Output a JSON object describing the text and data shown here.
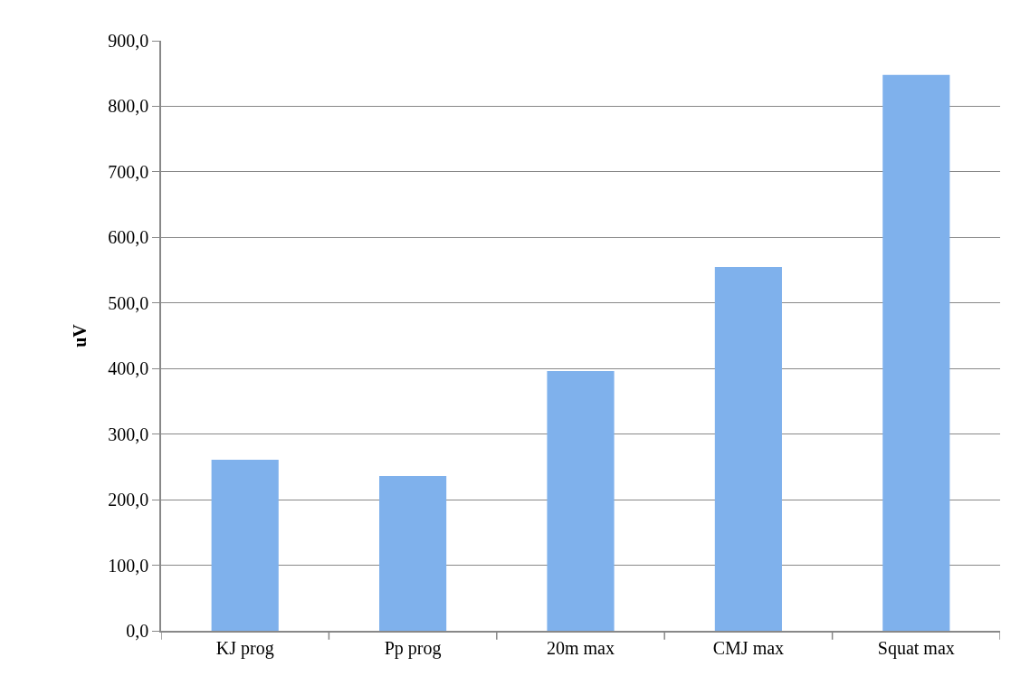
{
  "chart_data": {
    "type": "bar",
    "ylabel": "uV",
    "categories": [
      "KJ prog",
      "Pp prog",
      "20m max",
      "CMJ max",
      "Squat max"
    ],
    "values": [
      261,
      236,
      396,
      555,
      848
    ],
    "color": "#7fb1ec",
    "ylim": [
      0,
      900
    ],
    "yticks": [
      {
        "value": 0,
        "label": "0,0"
      },
      {
        "value": 100,
        "label": "100,0"
      },
      {
        "value": 200,
        "label": "200,0"
      },
      {
        "value": 300,
        "label": "300,0"
      },
      {
        "value": 400,
        "label": "400,0"
      },
      {
        "value": 500,
        "label": "500,0"
      },
      {
        "value": 600,
        "label": "600,0"
      },
      {
        "value": 700,
        "label": "700,0"
      },
      {
        "value": 800,
        "label": "800,0"
      },
      {
        "value": 900,
        "label": "900,0"
      }
    ],
    "grid": "y",
    "legend": false
  }
}
